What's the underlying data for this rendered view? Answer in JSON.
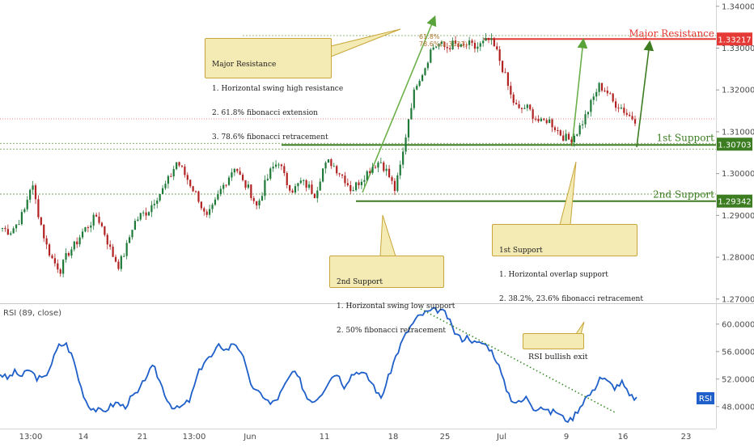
{
  "chart_data": [
    {
      "type": "candlestick",
      "instrument": "",
      "y_ticks": [
        "1.34000",
        "1.33000",
        "1.32000",
        "1.31000",
        "1.30000",
        "1.29000",
        "1.28000",
        "1.27000"
      ],
      "y_tick_values": [
        1.34,
        1.33,
        1.32,
        1.31,
        1.3,
        1.29,
        1.28,
        1.27
      ],
      "ylim": [
        1.269,
        1.3415
      ],
      "x_ticks": [
        "13:00",
        "14",
        "21",
        "13:00",
        "Jun",
        "11",
        "18",
        "25",
        "Jul",
        "9",
        "16",
        "23"
      ],
      "grid": false,
      "colors": {
        "up": "#1f7a3a",
        "down": "#b22222",
        "resistance": "#e53935",
        "support": "#3c7d22",
        "arrow": "#5aa33a"
      },
      "levels": [
        {
          "label": "Major Resistance",
          "value_text": "1.33217",
          "value": 1.33217
        },
        {
          "label": "1st Support",
          "value_text": "1.30703",
          "value": 1.30703
        },
        {
          "label": "2nd Support",
          "value_text": "1.29342",
          "value": 1.29342
        }
      ],
      "chart_labels": [
        "61.8%",
        "78.6%(1.3321)"
      ],
      "annotations": [
        {
          "id": "major",
          "lines": [
            "Major Resistance",
            "1. Horizontal swing high resistance",
            "2. 61.8% fibonacci extension",
            "3. 78.6% fibonacci retracement"
          ]
        },
        {
          "id": "support1",
          "lines": [
            "1st Support",
            "1. Horizontal overlap support",
            "2. 38.2%, 23.6% fibonacci retracement"
          ]
        },
        {
          "id": "support2",
          "lines": [
            "2nd Support",
            "1. Horizontal swing low support",
            "2. 50% fibonacci retracement"
          ]
        }
      ],
      "close_path": [
        1.287,
        1.286,
        1.288,
        1.291,
        1.298,
        1.29,
        1.283,
        1.279,
        1.277,
        1.281,
        1.283,
        1.286,
        1.288,
        1.29,
        1.286,
        1.281,
        1.278,
        1.282,
        1.288,
        1.29,
        1.291,
        1.294,
        1.296,
        1.299,
        1.303,
        1.3,
        1.297,
        1.294,
        1.289,
        1.292,
        1.296,
        1.299,
        1.302,
        1.298,
        1.296,
        1.292,
        1.297,
        1.301,
        1.303,
        1.298,
        1.296,
        1.298,
        1.297,
        1.295,
        1.301,
        1.303,
        1.301,
        1.299,
        1.296,
        1.298,
        1.3,
        1.302,
        1.303,
        1.3,
        1.296,
        1.304,
        1.315,
        1.322,
        1.325,
        1.33,
        1.331,
        1.33,
        1.331,
        1.33,
        1.331,
        1.33,
        1.331,
        1.332,
        1.329,
        1.324,
        1.318,
        1.315,
        1.316,
        1.314,
        1.312,
        1.313,
        1.311,
        1.309,
        1.308,
        1.31,
        1.313,
        1.317,
        1.321,
        1.32,
        1.317,
        1.316,
        1.314,
        1.313
      ]
    },
    {
      "type": "line",
      "title": "RSI (89, close)",
      "badge": "RSI",
      "y_ticks": [
        "60.0000",
        "56.0000",
        "52.0000",
        "48.0000"
      ],
      "y_tick_values": [
        60,
        56,
        52,
        48
      ],
      "ylim": [
        44.8,
        62.8
      ],
      "annotation": "RSI bullish exit",
      "series": [
        {
          "values": [
            52.8,
            52.1,
            53.0,
            52.4,
            53.4,
            52.2,
            52.0,
            54.2,
            56.8,
            57.2,
            55.0,
            51.0,
            48.2,
            47.6,
            47.2,
            48.0,
            48.6,
            47.9,
            49.4,
            50.1,
            52.6,
            53.8,
            51.3,
            48.7,
            47.6,
            48.1,
            49.0,
            52.6,
            54.8,
            55.3,
            57.0,
            56.2,
            57.4,
            56.0,
            52.0,
            50.1,
            49.6,
            48.3,
            49.3,
            51.2,
            53.1,
            51.8,
            49.2,
            48.9,
            50.1,
            51.9,
            53.0,
            51.0,
            52.6,
            53.2,
            52.5,
            51.2,
            49.1,
            52.0,
            55.1,
            57.6,
            59.5,
            60.9,
            61.6,
            61.9,
            62.1,
            61.4,
            59.0,
            57.8,
            58.2,
            57.1,
            57.3,
            56.4,
            54.5,
            51.0,
            48.9,
            48.5,
            49.4,
            47.7,
            48.1,
            47.1,
            47.4,
            46.3,
            46.0,
            47.6,
            49.3,
            50.1,
            52.4,
            51.6,
            50.8,
            51.5,
            49.5,
            49.2
          ]
        }
      ]
    }
  ]
}
